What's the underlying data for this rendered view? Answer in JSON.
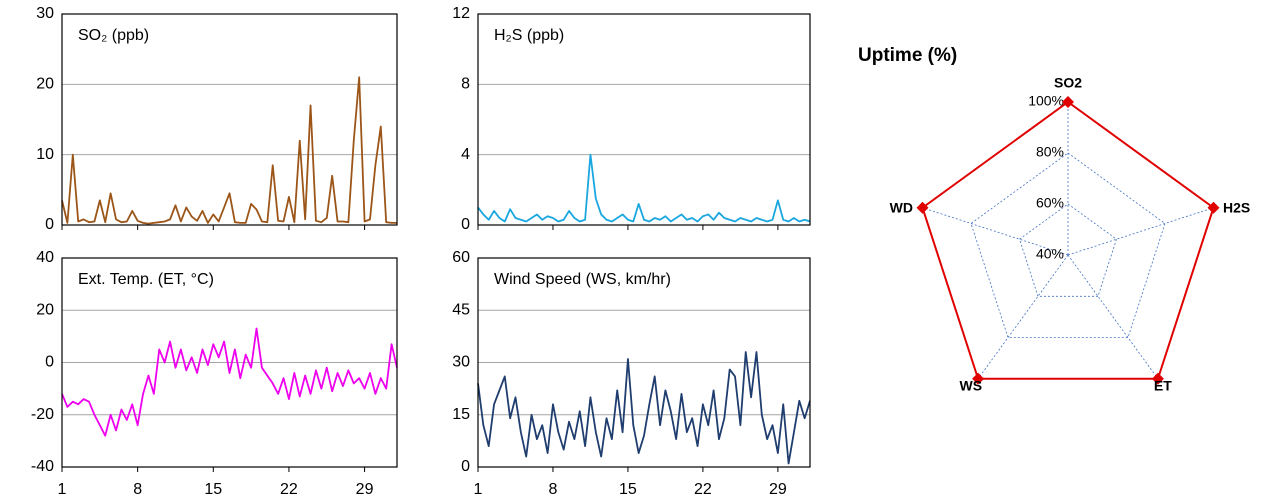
{
  "chart_data": [
    {
      "type": "line",
      "title": "SO₂ (ppb)",
      "x": [
        1,
        1.5,
        2,
        2.5,
        3,
        3.5,
        4,
        4.5,
        5,
        5.5,
        6,
        6.5,
        7,
        7.5,
        8,
        8.5,
        9,
        9.5,
        10,
        10.5,
        11,
        11.5,
        12,
        12.5,
        13,
        13.5,
        14,
        14.5,
        15,
        15.5,
        16,
        16.5,
        17,
        17.5,
        18,
        18.5,
        19,
        19.5,
        20,
        20.5,
        21,
        21.5,
        22,
        22.5,
        23,
        23.5,
        24,
        24.5,
        25,
        25.5,
        26,
        26.5,
        27,
        27.5,
        28,
        28.5,
        29,
        29.5,
        30,
        30.5,
        31,
        31.5,
        32
      ],
      "series": [
        {
          "color": "#9c5518",
          "values": [
            3.5,
            0.3,
            10,
            0.5,
            0.8,
            0.4,
            0.5,
            3.5,
            0.4,
            4.5,
            0.8,
            0.4,
            0.5,
            2,
            0.6,
            0.3,
            0.2,
            0.3,
            0.4,
            0.5,
            0.8,
            2.8,
            0.5,
            2.5,
            1.2,
            0.6,
            2,
            0.3,
            1.5,
            0.5,
            2.5,
            4.5,
            0.4,
            0.3,
            0.3,
            3,
            2.2,
            0.5,
            0.4,
            8.5,
            0.6,
            0.5,
            4,
            0.4,
            12,
            0.8,
            17,
            0.6,
            0.4,
            1,
            7,
            0.5,
            0.5,
            0.4,
            12,
            21,
            0.5,
            0.8,
            8.5,
            14,
            0.4,
            0.3,
            0.3
          ]
        }
      ],
      "xlim": [
        1,
        32
      ],
      "xticks": [
        1,
        8,
        15,
        22,
        29
      ],
      "ylim": [
        0,
        30
      ],
      "yticks": [
        0,
        10,
        20,
        30
      ],
      "grid": true
    },
    {
      "type": "line",
      "title": "H₂S  (ppb)",
      "x": [
        1,
        1.5,
        2,
        2.5,
        3,
        3.5,
        4,
        4.5,
        5,
        5.5,
        6,
        6.5,
        7,
        7.5,
        8,
        8.5,
        9,
        9.5,
        10,
        10.5,
        11,
        11.5,
        12,
        12.5,
        13,
        13.5,
        14,
        14.5,
        15,
        15.5,
        16,
        16.5,
        17,
        17.5,
        18,
        18.5,
        19,
        19.5,
        20,
        20.5,
        21,
        21.5,
        22,
        22.5,
        23,
        23.5,
        24,
        24.5,
        25,
        25.5,
        26,
        26.5,
        27,
        27.5,
        28,
        28.5,
        29,
        29.5,
        30,
        30.5,
        31,
        31.5,
        32
      ],
      "series": [
        {
          "color": "#1aa7e0",
          "values": [
            1,
            0.6,
            0.3,
            0.8,
            0.4,
            0.2,
            0.9,
            0.4,
            0.3,
            0.2,
            0.4,
            0.6,
            0.3,
            0.5,
            0.4,
            0.2,
            0.3,
            0.8,
            0.4,
            0.2,
            0.3,
            4,
            1.5,
            0.6,
            0.3,
            0.2,
            0.4,
            0.6,
            0.3,
            0.2,
            1.2,
            0.3,
            0.2,
            0.4,
            0.3,
            0.5,
            0.2,
            0.4,
            0.6,
            0.3,
            0.4,
            0.2,
            0.5,
            0.6,
            0.3,
            0.7,
            0.4,
            0.3,
            0.2,
            0.4,
            0.3,
            0.2,
            0.4,
            0.3,
            0.2,
            0.3,
            1.4,
            0.3,
            0.2,
            0.4,
            0.2,
            0.3,
            0.2
          ]
        }
      ],
      "xlim": [
        1,
        32
      ],
      "xticks": [
        1,
        8,
        15,
        22,
        29
      ],
      "ylim": [
        0,
        12
      ],
      "yticks": [
        0,
        4,
        8,
        12
      ],
      "grid": true
    },
    {
      "type": "line",
      "title": "Ext. Temp. (ET, °C)",
      "x": [
        1,
        1.5,
        2,
        2.5,
        3,
        3.5,
        4,
        4.5,
        5,
        5.5,
        6,
        6.5,
        7,
        7.5,
        8,
        8.5,
        9,
        9.5,
        10,
        10.5,
        11,
        11.5,
        12,
        12.5,
        13,
        13.5,
        14,
        14.5,
        15,
        15.5,
        16,
        16.5,
        17,
        17.5,
        18,
        18.5,
        19,
        19.5,
        20,
        20.5,
        21,
        21.5,
        22,
        22.5,
        23,
        23.5,
        24,
        24.5,
        25,
        25.5,
        26,
        26.5,
        27,
        27.5,
        28,
        28.5,
        29,
        29.5,
        30,
        30.5,
        31,
        31.5,
        32
      ],
      "series": [
        {
          "color": "#ee00ee",
          "values": [
            -12,
            -17,
            -15,
            -16,
            -14,
            -15,
            -20,
            -24,
            -28,
            -20,
            -26,
            -18,
            -22,
            -16,
            -24,
            -12,
            -5,
            -12,
            5,
            0,
            8,
            -2,
            5,
            -3,
            2,
            -4,
            5,
            -1,
            7,
            2,
            8,
            -4,
            5,
            -6,
            3,
            -2,
            13,
            -2,
            -5,
            -8,
            -12,
            -6,
            -14,
            -4,
            -13,
            -5,
            -12,
            -3,
            -10,
            -2,
            -11,
            -4,
            -9,
            -3,
            -8,
            -6,
            -10,
            -4,
            -12,
            -6,
            -10,
            7,
            -2
          ]
        }
      ],
      "xlim": [
        1,
        32
      ],
      "xticks": [
        1,
        8,
        15,
        22,
        29
      ],
      "ylim": [
        -40,
        40
      ],
      "yticks": [
        -40,
        -20,
        0,
        20,
        40
      ],
      "grid": true
    },
    {
      "type": "line",
      "title": "Wind Speed (WS, km/hr)",
      "x": [
        1,
        1.5,
        2,
        2.5,
        3,
        3.5,
        4,
        4.5,
        5,
        5.5,
        6,
        6.5,
        7,
        7.5,
        8,
        8.5,
        9,
        9.5,
        10,
        10.5,
        11,
        11.5,
        12,
        12.5,
        13,
        13.5,
        14,
        14.5,
        15,
        15.5,
        16,
        16.5,
        17,
        17.5,
        18,
        18.5,
        19,
        19.5,
        20,
        20.5,
        21,
        21.5,
        22,
        22.5,
        23,
        23.5,
        24,
        24.5,
        25,
        25.5,
        26,
        26.5,
        27,
        27.5,
        28,
        28.5,
        29,
        29.5,
        30,
        30.5,
        31,
        31.5,
        32
      ],
      "series": [
        {
          "color": "#1f3d6e",
          "values": [
            24,
            12,
            6,
            18,
            22,
            26,
            14,
            20,
            10,
            3,
            15,
            8,
            12,
            4,
            18,
            10,
            5,
            13,
            8,
            16,
            6,
            20,
            10,
            3,
            14,
            8,
            22,
            10,
            31,
            12,
            4,
            9,
            18,
            26,
            12,
            22,
            16,
            8,
            21,
            10,
            14,
            6,
            18,
            12,
            22,
            8,
            14,
            28,
            26,
            12,
            33,
            20,
            33,
            15,
            8,
            12,
            4,
            18,
            1,
            10,
            19,
            14,
            19
          ]
        }
      ],
      "xlim": [
        1,
        32
      ],
      "xticks": [
        1,
        8,
        15,
        22,
        29
      ],
      "ylim": [
        0,
        60
      ],
      "yticks": [
        0,
        15,
        30,
        45,
        60
      ],
      "grid": true
    },
    {
      "type": "radar",
      "title": "Uptime (%)",
      "categories": [
        "SO2",
        "H2S",
        "ET",
        "WS",
        "WD"
      ],
      "values": [
        100,
        100,
        100,
        100,
        100
      ],
      "color": "#e00000",
      "rlim": [
        40,
        100
      ],
      "rticks": [
        {
          "value": 40,
          "label": "40%"
        },
        {
          "value": 60,
          "label": "60%"
        },
        {
          "value": 80,
          "label": "80%"
        },
        {
          "value": 100,
          "label": "100%"
        }
      ],
      "grid": true
    }
  ]
}
